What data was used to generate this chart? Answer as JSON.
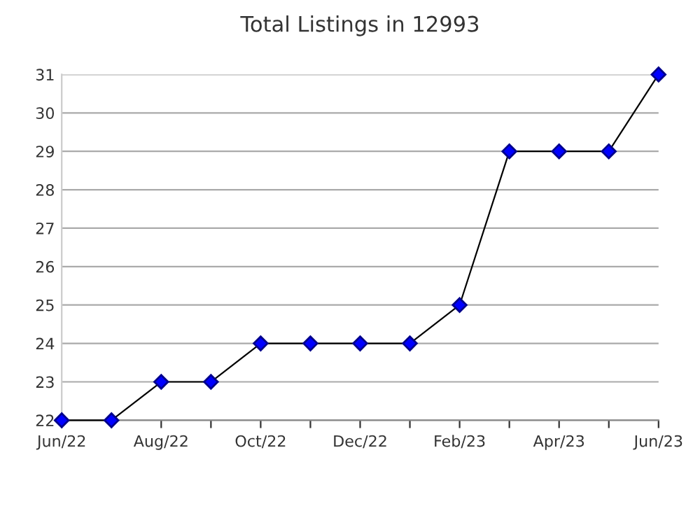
{
  "chart_data": {
    "type": "line",
    "title": "Total Listings in 12993",
    "categories": [
      "Jun/22",
      null,
      "Aug/22",
      null,
      "Oct/22",
      null,
      "Dec/22",
      null,
      "Feb/23",
      null,
      "Apr/23",
      null,
      "Jun/23"
    ],
    "series": [
      {
        "color": "#0000ff",
        "values": [
          22,
          22,
          23,
          23,
          24,
          24,
          24,
          24,
          25,
          29,
          29,
          29,
          31
        ]
      }
    ],
    "ylim": [
      22,
      31
    ],
    "yticks": [
      22,
      23,
      24,
      25,
      26,
      27,
      28,
      29,
      30,
      31
    ],
    "grid": "y",
    "marker": "diamond",
    "line_style": "solid"
  }
}
